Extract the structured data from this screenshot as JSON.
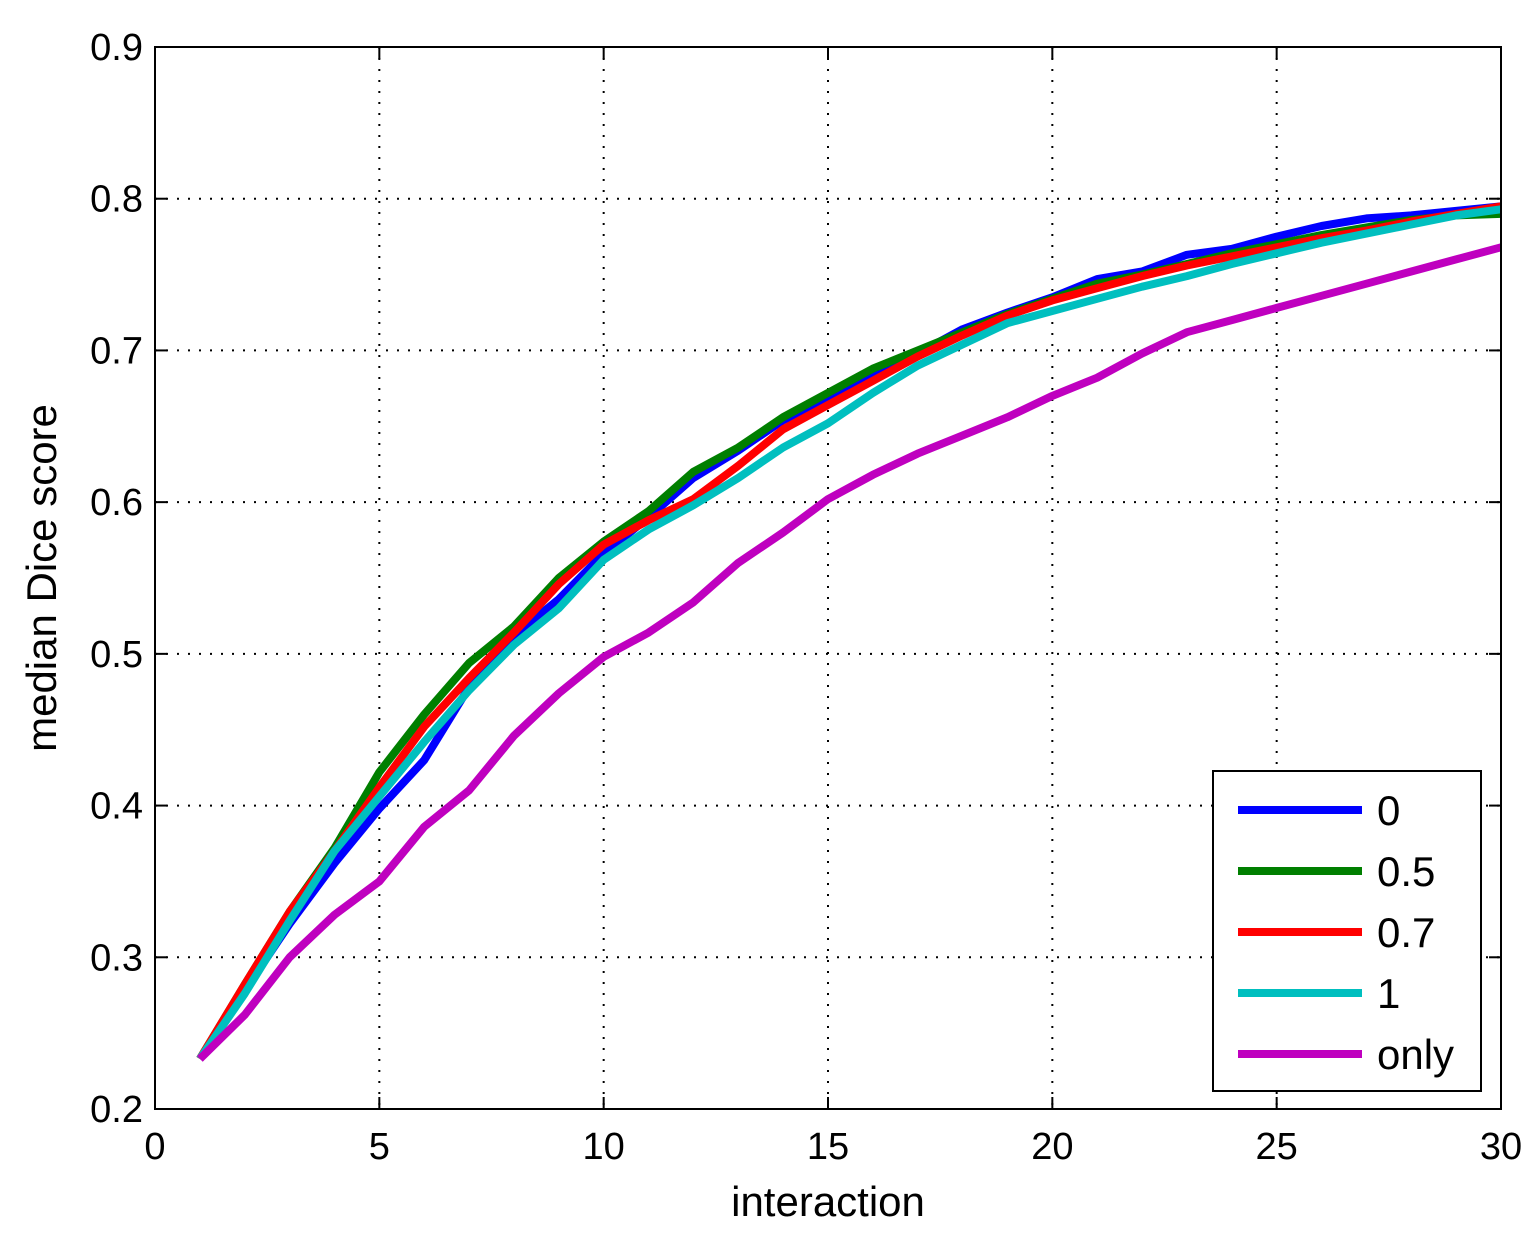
{
  "chart_data": {
    "type": "line",
    "title": "",
    "xlabel": "interaction",
    "ylabel": "median Dice score",
    "xlim": [
      0,
      30
    ],
    "ylim": [
      0.2,
      0.9
    ],
    "xticks": [
      0,
      5,
      10,
      15,
      20,
      25,
      30
    ],
    "yticks": [
      0.2,
      0.3,
      0.4,
      0.5,
      0.6,
      0.7,
      0.8,
      0.9
    ],
    "xtick_labels": [
      "0",
      "5",
      "10",
      "15",
      "20",
      "25",
      "30"
    ],
    "ytick_labels": [
      "0.2",
      "0.3",
      "0.4",
      "0.5",
      "0.6",
      "0.7",
      "0.8",
      "0.9"
    ],
    "grid": true,
    "legend_position": "bottom-right",
    "x": [
      1,
      2,
      3,
      4,
      5,
      6,
      7,
      8,
      9,
      10,
      11,
      12,
      13,
      14,
      15,
      16,
      17,
      18,
      19,
      20,
      21,
      22,
      23,
      24,
      25,
      26,
      27,
      28,
      29,
      30
    ],
    "series": [
      {
        "name": "0",
        "color": "#0000ff",
        "values": [
          0.233,
          0.278,
          0.322,
          0.362,
          0.398,
          0.43,
          0.478,
          0.512,
          0.536,
          0.566,
          0.59,
          0.616,
          0.634,
          0.654,
          0.668,
          0.684,
          0.698,
          0.714,
          0.725,
          0.735,
          0.747,
          0.752,
          0.763,
          0.767,
          0.775,
          0.782,
          0.787,
          0.789,
          0.792,
          0.795
        ]
      },
      {
        "name": "0.5",
        "color": "#007f00",
        "values": [
          0.233,
          0.282,
          0.33,
          0.372,
          0.422,
          0.46,
          0.494,
          0.518,
          0.55,
          0.574,
          0.594,
          0.62,
          0.636,
          0.656,
          0.672,
          0.688,
          0.7,
          0.712,
          0.724,
          0.734,
          0.744,
          0.75,
          0.757,
          0.764,
          0.77,
          0.776,
          0.781,
          0.786,
          0.789,
          0.79
        ]
      },
      {
        "name": "0.7",
        "color": "#ff0000",
        "values": [
          0.233,
          0.282,
          0.33,
          0.37,
          0.412,
          0.452,
          0.484,
          0.514,
          0.546,
          0.572,
          0.588,
          0.602,
          0.624,
          0.648,
          0.664,
          0.68,
          0.696,
          0.71,
          0.723,
          0.733,
          0.741,
          0.749,
          0.756,
          0.762,
          0.768,
          0.774,
          0.779,
          0.785,
          0.79,
          0.795
        ]
      },
      {
        "name": "1",
        "color": "#00bfbf",
        "values": [
          0.233,
          0.276,
          0.324,
          0.37,
          0.406,
          0.442,
          0.476,
          0.506,
          0.53,
          0.562,
          0.582,
          0.598,
          0.616,
          0.636,
          0.652,
          0.672,
          0.69,
          0.704,
          0.718,
          0.726,
          0.734,
          0.742,
          0.749,
          0.757,
          0.764,
          0.771,
          0.777,
          0.783,
          0.789,
          0.793
        ]
      },
      {
        "name": "only",
        "color": "#bf00bf",
        "values": [
          0.233,
          0.262,
          0.3,
          0.328,
          0.35,
          0.386,
          0.41,
          0.446,
          0.474,
          0.498,
          0.514,
          0.534,
          0.56,
          0.58,
          0.602,
          0.618,
          0.632,
          0.644,
          0.656,
          0.67,
          0.682,
          0.698,
          0.712,
          0.72,
          0.728,
          0.736,
          0.744,
          0.752,
          0.76,
          0.768
        ]
      }
    ]
  }
}
